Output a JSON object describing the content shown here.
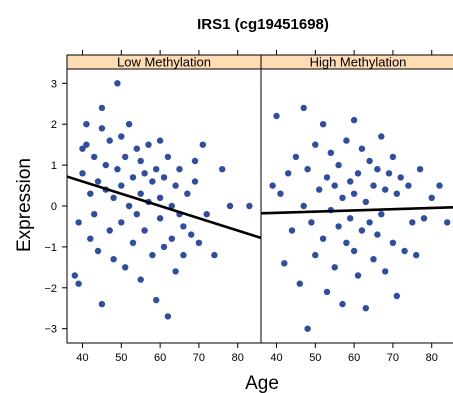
{
  "chart_data": {
    "type": "scatter",
    "title": "IRS1 (cg19451698)",
    "xlabel": "Age",
    "ylabel": "Expression",
    "xlim": [
      36,
      86
    ],
    "ylim": [
      -3.35,
      3.35
    ],
    "x_ticks": [
      "40",
      "50",
      "60",
      "70",
      "80"
    ],
    "x_tick_values": [
      40,
      50,
      60,
      70,
      80
    ],
    "y_ticks": [
      "−3",
      "−2",
      "−1",
      "0",
      "1",
      "2",
      "3"
    ],
    "y_tick_values": [
      -3,
      -2,
      -1,
      0,
      1,
      2,
      3
    ],
    "grid": false,
    "colors": {
      "points": "#2e4da3",
      "fit_line": "#000000",
      "strip": "#ffdcb3",
      "frame": "#000000"
    },
    "panels": [
      {
        "name": "Low Methylation",
        "fit_line": {
          "x": [
            36,
            86
          ],
          "y": [
            0.72,
            -0.78
          ]
        },
        "points": [
          [
            38,
            -1.7
          ],
          [
            39,
            -1.9
          ],
          [
            39,
            -0.4
          ],
          [
            40,
            1.4
          ],
          [
            40,
            0.8
          ],
          [
            41,
            1.5
          ],
          [
            41,
            2.0
          ],
          [
            42,
            0.3
          ],
          [
            42,
            -0.8
          ],
          [
            43,
            1.2
          ],
          [
            43,
            -0.2
          ],
          [
            44,
            0.6
          ],
          [
            44,
            -1.1
          ],
          [
            45,
            2.4
          ],
          [
            45,
            1.9
          ],
          [
            45,
            -2.4
          ],
          [
            46,
            1.0
          ],
          [
            46,
            0.4
          ],
          [
            47,
            -0.6
          ],
          [
            47,
            1.6
          ],
          [
            48,
            0.2
          ],
          [
            48,
            -1.3
          ],
          [
            49,
            3.0
          ],
          [
            49,
            0.9
          ],
          [
            50,
            1.7
          ],
          [
            50,
            -0.4
          ],
          [
            50,
            0.5
          ],
          [
            51,
            1.2
          ],
          [
            51,
            -1.5
          ],
          [
            52,
            0.0
          ],
          [
            52,
            2.0
          ],
          [
            53,
            0.7
          ],
          [
            53,
            -0.9
          ],
          [
            54,
            1.4
          ],
          [
            54,
            -0.2
          ],
          [
            55,
            0.3
          ],
          [
            55,
            -1.8
          ],
          [
            55,
            1.1
          ],
          [
            56,
            0.8
          ],
          [
            56,
            -0.6
          ],
          [
            57,
            1.5
          ],
          [
            57,
            0.1
          ],
          [
            58,
            -1.2
          ],
          [
            58,
            0.6
          ],
          [
            59,
            -2.3
          ],
          [
            59,
            0.9
          ],
          [
            60,
            1.6
          ],
          [
            60,
            -0.3
          ],
          [
            60,
            0.2
          ],
          [
            61,
            -1.0
          ],
          [
            61,
            0.7
          ],
          [
            62,
            -2.7
          ],
          [
            62,
            1.2
          ],
          [
            63,
            0.0
          ],
          [
            63,
            -0.8
          ],
          [
            64,
            0.5
          ],
          [
            64,
            -1.6
          ],
          [
            65,
            -0.2
          ],
          [
            65,
            0.9
          ],
          [
            66,
            -0.5
          ],
          [
            66,
            -1.2
          ],
          [
            67,
            0.3
          ],
          [
            68,
            -0.7
          ],
          [
            69,
            0.6
          ],
          [
            69,
            1.1
          ],
          [
            70,
            -0.9
          ],
          [
            71,
            1.5
          ],
          [
            72,
            -0.2
          ],
          [
            74,
            -1.2
          ],
          [
            76,
            0.9
          ],
          [
            78,
            0.0
          ],
          [
            83,
            0.0
          ]
        ]
      },
      {
        "name": "High Methylation",
        "fit_line": {
          "x": [
            36,
            86
          ],
          "y": [
            -0.18,
            -0.03
          ]
        },
        "points": [
          [
            39,
            0.5
          ],
          [
            40,
            2.2
          ],
          [
            41,
            0.3
          ],
          [
            42,
            -1.4
          ],
          [
            43,
            0.8
          ],
          [
            44,
            -0.6
          ],
          [
            45,
            1.2
          ],
          [
            46,
            -1.9
          ],
          [
            47,
            0.0
          ],
          [
            47,
            2.4
          ],
          [
            48,
            -3.0
          ],
          [
            48,
            0.9
          ],
          [
            49,
            -0.4
          ],
          [
            50,
            1.5
          ],
          [
            50,
            -1.2
          ],
          [
            51,
            0.4
          ],
          [
            52,
            2.0
          ],
          [
            52,
            -0.8
          ],
          [
            53,
            0.7
          ],
          [
            53,
            -2.1
          ],
          [
            54,
            1.3
          ],
          [
            54,
            -0.1
          ],
          [
            55,
            0.5
          ],
          [
            55,
            -1.5
          ],
          [
            56,
            1.0
          ],
          [
            56,
            -0.5
          ],
          [
            57,
            0.2
          ],
          [
            57,
            -2.4
          ],
          [
            58,
            1.6
          ],
          [
            58,
            -0.9
          ],
          [
            59,
            0.6
          ],
          [
            59,
            -0.3
          ],
          [
            60,
            2.1
          ],
          [
            60,
            -1.1
          ],
          [
            60,
            0.3
          ],
          [
            61,
            -1.7
          ],
          [
            61,
            0.8
          ],
          [
            62,
            -0.6
          ],
          [
            62,
            1.4
          ],
          [
            63,
            -2.5
          ],
          [
            63,
            0.1
          ],
          [
            64,
            1.1
          ],
          [
            64,
            -0.4
          ],
          [
            65,
            0.5
          ],
          [
            65,
            -1.3
          ],
          [
            66,
            0.9
          ],
          [
            66,
            -0.7
          ],
          [
            67,
            1.7
          ],
          [
            67,
            -0.2
          ],
          [
            68,
            0.4
          ],
          [
            68,
            -1.6
          ],
          [
            69,
            0.8
          ],
          [
            70,
            -0.9
          ],
          [
            70,
            1.2
          ],
          [
            71,
            -2.2
          ],
          [
            71,
            0.3
          ],
          [
            72,
            0.7
          ],
          [
            73,
            -1.1
          ],
          [
            74,
            0.5
          ],
          [
            75,
            -0.4
          ],
          [
            76,
            -1.2
          ],
          [
            77,
            0.9
          ],
          [
            78,
            -0.3
          ],
          [
            80,
            0.2
          ],
          [
            82,
            0.5
          ],
          [
            84,
            -0.4
          ]
        ]
      }
    ]
  }
}
